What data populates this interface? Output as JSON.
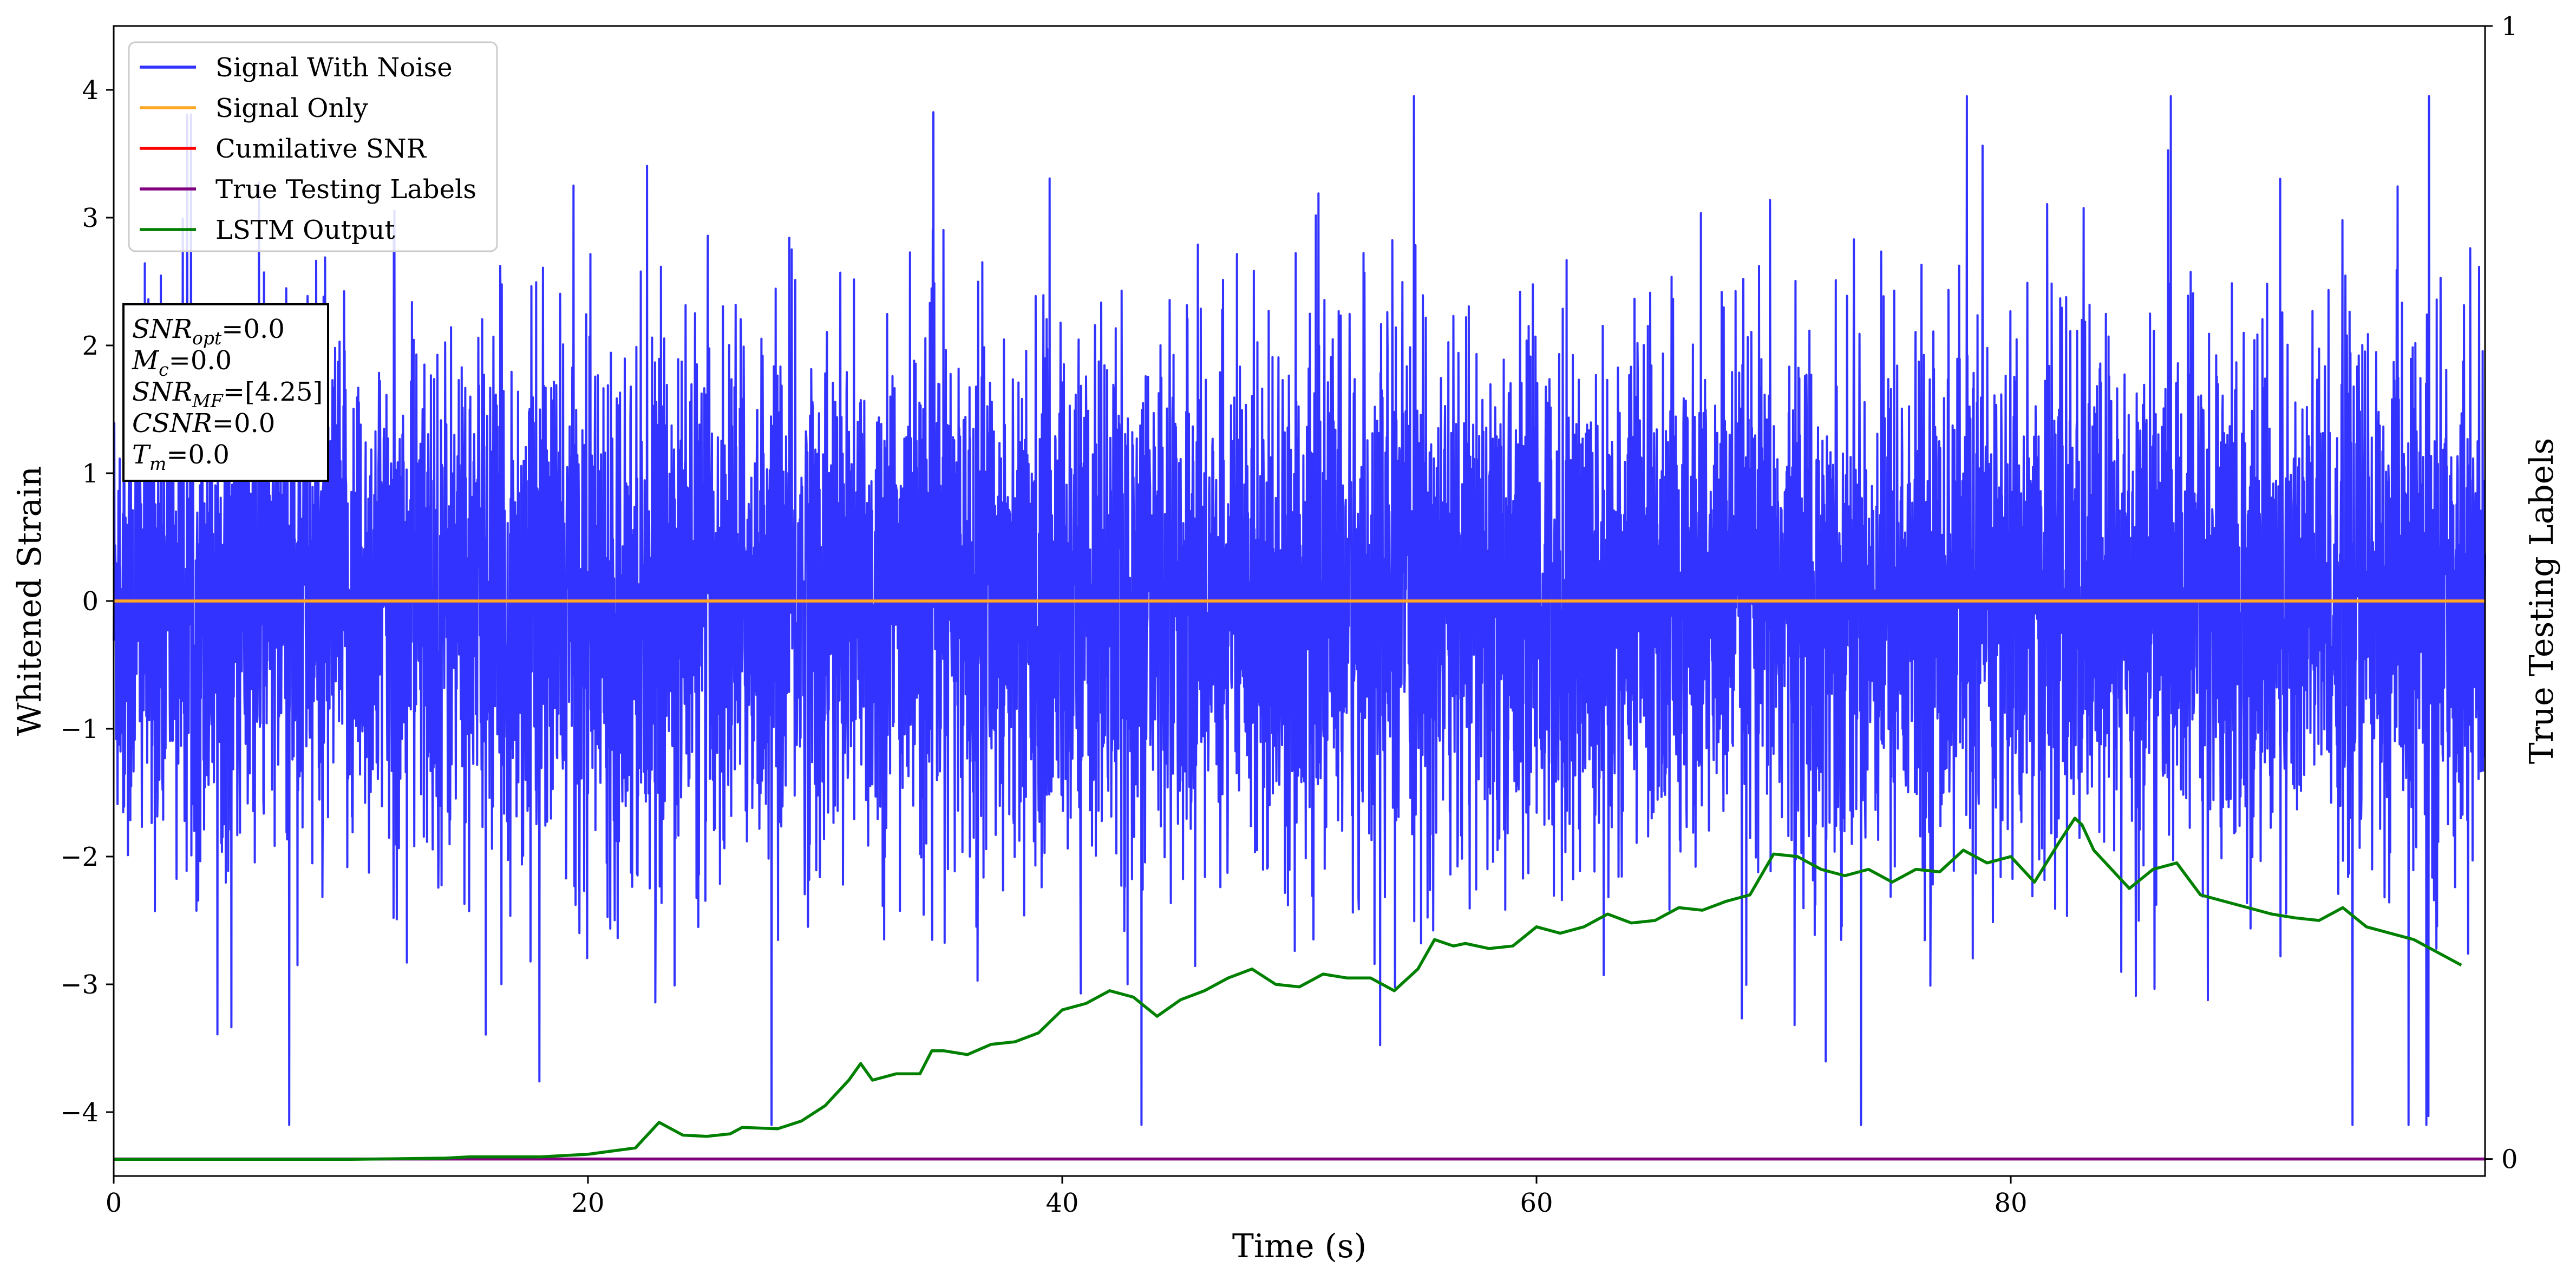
{
  "chart_data": {
    "type": "line",
    "xlabel": "Time (s)",
    "ylabel": "Whitened Strain",
    "y2label": "True Testing Labels",
    "xlim": [
      0,
      100
    ],
    "ylim": [
      -4.5,
      4.5
    ],
    "y2lim": [
      -0.015,
      1.0
    ],
    "x_ticks": [
      0,
      20,
      40,
      60,
      80
    ],
    "y_ticks": [
      -4,
      -3,
      -2,
      -1,
      0,
      1,
      2,
      3,
      4
    ],
    "y2_ticks": [
      0,
      1
    ],
    "grid": false,
    "legend_position": "top-left",
    "colors": {
      "signal_with_noise": "#3333ff",
      "signal_only": "#ffa726",
      "cumulative_snr": "#ff0000",
      "true_testing_labels": "#800080",
      "lstm_output": "#008000"
    },
    "series": [
      {
        "name": "Signal With Noise",
        "axis": "left",
        "note": "dense noise, amplitude mostly within about -2.5..3, spikes to about 3.95 / -4.1"
      },
      {
        "name": "Signal Only",
        "axis": "left",
        "x": [
          0,
          100
        ],
        "y": [
          0,
          0
        ]
      },
      {
        "name": "Cumilative SNR",
        "axis": "left",
        "x": [
          0,
          100
        ],
        "y": [
          0,
          0
        ]
      },
      {
        "name": "True Testing Labels",
        "axis": "right",
        "x": [
          0,
          100
        ],
        "y": [
          0,
          0
        ]
      },
      {
        "name": "LSTM Output",
        "axis": "left",
        "x": [
          0,
          10,
          14,
          15,
          18,
          20,
          22,
          23,
          24,
          25,
          26,
          26.5,
          28,
          29,
          30,
          31,
          31.5,
          32,
          33,
          34,
          34.5,
          35,
          36,
          37,
          38,
          39,
          40,
          41,
          42,
          43,
          44,
          45,
          46,
          47,
          48,
          49,
          50,
          51,
          52,
          53,
          54,
          55,
          55.7,
          56.5,
          57,
          58,
          59,
          60,
          61,
          62,
          63,
          64,
          65,
          66,
          67,
          68,
          69,
          70,
          71,
          72,
          73,
          74,
          75,
          76,
          77,
          78,
          79,
          80,
          81,
          82,
          82.7,
          83,
          83.5,
          84,
          85,
          86,
          87,
          88,
          89,
          90,
          91,
          92,
          93,
          94,
          95,
          96,
          97,
          98,
          99
        ],
        "y": [
          -4.37,
          -4.37,
          -4.36,
          -4.35,
          -4.35,
          -4.33,
          -4.28,
          -4.08,
          -4.18,
          -4.19,
          -4.17,
          -4.12,
          -4.13,
          -4.07,
          -3.95,
          -3.75,
          -3.62,
          -3.75,
          -3.7,
          -3.7,
          -3.52,
          -3.52,
          -3.55,
          -3.47,
          -3.45,
          -3.38,
          -3.2,
          -3.15,
          -3.05,
          -3.1,
          -3.25,
          -3.12,
          -3.05,
          -2.95,
          -2.88,
          -3.0,
          -3.02,
          -2.92,
          -2.95,
          -2.95,
          -3.05,
          -2.88,
          -2.65,
          -2.7,
          -2.68,
          -2.72,
          -2.7,
          -2.55,
          -2.6,
          -2.55,
          -2.45,
          -2.52,
          -2.5,
          -2.4,
          -2.42,
          -2.35,
          -2.3,
          -1.98,
          -2.0,
          -2.1,
          -2.15,
          -2.1,
          -2.2,
          -2.1,
          -2.12,
          -1.95,
          -2.05,
          -2.0,
          -2.2,
          -1.9,
          -1.7,
          -1.75,
          -1.95,
          -2.05,
          -2.25,
          -2.1,
          -2.05,
          -2.3,
          -2.35,
          -2.4,
          -2.45,
          -2.48,
          -2.5,
          -2.4,
          -2.55,
          -2.6,
          -2.65,
          -2.75,
          -2.85
        ]
      }
    ],
    "annotation": [
      {
        "base": "SNR",
        "sub": "opt",
        "value": "=0.0"
      },
      {
        "base": "M",
        "sub": "c",
        "value": "=0.0"
      },
      {
        "base": "SNR",
        "sub": "MF",
        "value": "=[4.25]"
      },
      {
        "base": "CSNR",
        "sub": "",
        "value": "=0.0"
      },
      {
        "base": "T",
        "sub": "m",
        "value": "=0.0"
      }
    ]
  }
}
